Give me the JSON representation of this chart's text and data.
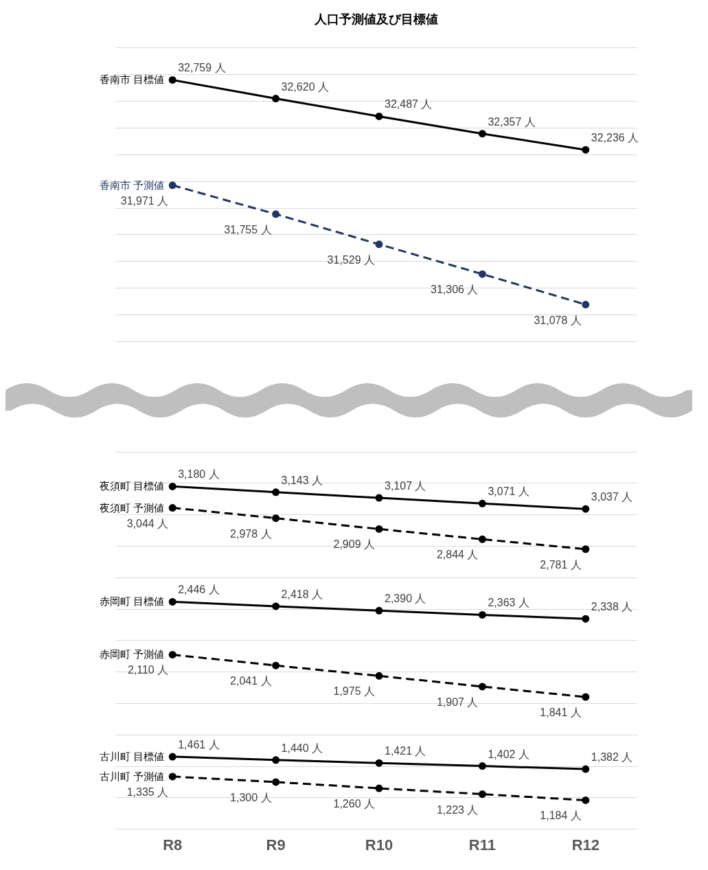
{
  "chart_data": [
    {
      "type": "line",
      "title": "人口予測値及び目標値",
      "categories": [
        null,
        null,
        null,
        null,
        null
      ],
      "tick_labels": "x",
      "grid": "y",
      "legend": false,
      "marker": "circle",
      "series": [
        {
          "name": "香南市 目標値",
          "color": "#000000",
          "line_style": "solid",
          "values": [
            32759,
            32620,
            32487,
            32357,
            32236
          ],
          "value_labels": [
            "32,759 人",
            "32,620 人",
            "32,487 人",
            "32,357 人",
            "32,236 人"
          ]
        },
        {
          "name": "香南市 予測値",
          "color": "#203864",
          "line_style": "dashed",
          "values": [
            31971,
            31755,
            31529,
            31306,
            31078
          ],
          "value_labels": [
            "31,971 人",
            "31,755 人",
            "31,529 人",
            "31,306 人",
            "31,078 人"
          ]
        }
      ]
    },
    {
      "type": "line",
      "categories": [
        "R8",
        "R9",
        "R10",
        "R11",
        "R12"
      ],
      "tick_labels": "x",
      "grid": "y",
      "legend": false,
      "marker": "circle",
      "series": [
        {
          "name": "夜須町 目標値",
          "color": "#000000",
          "line_style": "solid",
          "values": [
            3180,
            3143,
            3107,
            3071,
            3037
          ],
          "value_labels": [
            "3,180 人",
            "3,143 人",
            "3,107 人",
            "3,071 人",
            "3,037 人"
          ]
        },
        {
          "name": "夜須町 予測値",
          "color": "#000000",
          "line_style": "dashed",
          "values": [
            3044,
            2978,
            2909,
            2844,
            2781
          ],
          "value_labels": [
            "3,044 人",
            "2,978 人",
            "2,909 人",
            "2,844 人",
            "2,781 人"
          ]
        },
        {
          "name": "赤岡町 目標値",
          "color": "#000000",
          "line_style": "solid",
          "values": [
            2446,
            2418,
            2390,
            2363,
            2338
          ],
          "value_labels": [
            "2,446 人",
            "2,418 人",
            "2,390 人",
            "2,363 人",
            "2,338 人"
          ]
        },
        {
          "name": "赤岡町 予測値",
          "color": "#000000",
          "line_style": "dashed",
          "values": [
            2110,
            2041,
            1975,
            1907,
            1841
          ],
          "value_labels": [
            "2,110 人",
            "2,041 人",
            "1,975 人",
            "1,907 人",
            "1,841 人"
          ]
        },
        {
          "name": "古川町 目標値",
          "color": "#000000",
          "line_style": "solid",
          "values": [
            1461,
            1440,
            1421,
            1402,
            1382
          ],
          "value_labels": [
            "1,461 人",
            "1,440 人",
            "1,421 人",
            "1,402 人",
            "1,382 人"
          ]
        },
        {
          "name": "古川町 予測値",
          "color": "#000000",
          "line_style": "dashed",
          "values": [
            1335,
            1300,
            1260,
            1223,
            1184
          ],
          "value_labels": [
            "1,335 人",
            "1,300 人",
            "1,260 人",
            "1,223 人",
            "1,184 人"
          ]
        }
      ]
    }
  ]
}
